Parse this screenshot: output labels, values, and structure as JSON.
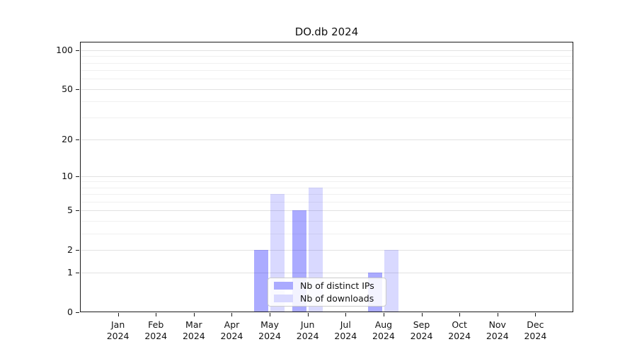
{
  "title": "DO.db 2024",
  "colors": {
    "distinct_ips_solid": "#aaaaff",
    "distinct_ips_fill": "rgba(0,0,255,0.33)",
    "downloads_solid": "#d9d9ff",
    "downloads_fill": "rgba(0,0,255,0.15)",
    "major_grid": "#e2e2e2",
    "minor_grid": "#f0f0f0",
    "axis": "#1a1a1a",
    "text": "#111111"
  },
  "legend": {
    "items": [
      {
        "label": "Nb of distinct IPs",
        "color": "#aaaaff",
        "fill": "rgba(0,0,255,0.33)"
      },
      {
        "label": "Nb of downloads",
        "color": "#d9d9ff",
        "fill": "rgba(0,0,255,0.15)"
      }
    ]
  },
  "y_axis": {
    "tick_labels": [
      "0",
      "1",
      "2",
      "5",
      "10",
      "20",
      "50",
      "100"
    ]
  },
  "x_axis": {
    "months": [
      "Jan",
      "Feb",
      "Mar",
      "Apr",
      "May",
      "Jun",
      "Jul",
      "Aug",
      "Sep",
      "Oct",
      "Nov",
      "Dec"
    ],
    "year": "2024"
  },
  "chart_data": {
    "type": "bar",
    "title": "DO.db 2024",
    "categories": [
      "Jan 2024",
      "Feb 2024",
      "Mar 2024",
      "Apr 2024",
      "May 2024",
      "Jun 2024",
      "Jul 2024",
      "Aug 2024",
      "Sep 2024",
      "Oct 2024",
      "Nov 2024",
      "Dec 2024"
    ],
    "series": [
      {
        "name": "Nb of distinct IPs",
        "color": "#aaaaff",
        "fill": "rgba(0,0,255,0.33)",
        "values": [
          0,
          0,
          0,
          0,
          2,
          5,
          0,
          1,
          0,
          0,
          0,
          0
        ]
      },
      {
        "name": "Nb of downloads",
        "color": "#d9d9ff",
        "fill": "rgba(0,0,255,0.15)",
        "values": [
          0,
          0,
          0,
          0,
          7,
          8,
          0,
          2,
          0,
          0,
          0,
          0
        ]
      }
    ],
    "xlabel": "",
    "ylabel": "",
    "yscale": "log1p",
    "yticks": [
      0,
      1,
      2,
      5,
      10,
      20,
      50,
      100
    ],
    "minor_grid_values": [
      3,
      4,
      6,
      7,
      8,
      9,
      30,
      40,
      60,
      70,
      80,
      90
    ],
    "ylim": [
      0,
      114
    ],
    "grid": true,
    "legend_position": "lower center"
  }
}
